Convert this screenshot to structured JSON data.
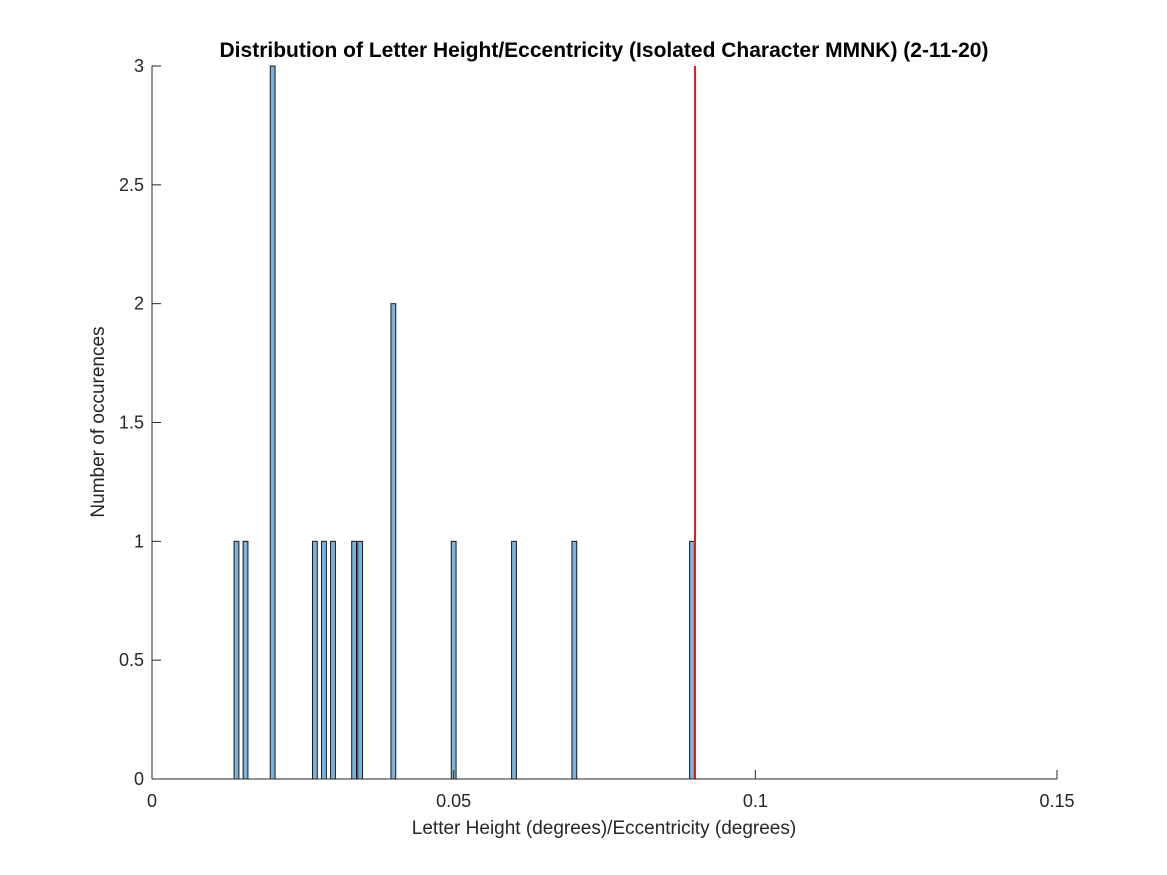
{
  "chart_data": {
    "type": "bar",
    "title": "Distribution of Letter Height/Eccentricity (Isolated Character MMNK) (2-11-20)",
    "xlabel": "Letter Height (degrees)/Eccentricity (degrees)",
    "ylabel": "Number of occurences",
    "xlim": [
      0,
      0.15
    ],
    "ylim": [
      0,
      3
    ],
    "xticks": [
      "0",
      "0.05",
      "0.1",
      "0.15"
    ],
    "yticks": [
      "0",
      "0.5",
      "1",
      "1.5",
      "2",
      "2.5",
      "3"
    ],
    "bin_width": 0.0008,
    "histogram_range": [
      0.0136,
      0.0896
    ],
    "bars": [
      {
        "x": 0.014,
        "count": 1
      },
      {
        "x": 0.0155,
        "count": 1
      },
      {
        "x": 0.02,
        "count": 3
      },
      {
        "x": 0.027,
        "count": 1
      },
      {
        "x": 0.0285,
        "count": 1
      },
      {
        "x": 0.03,
        "count": 1
      },
      {
        "x": 0.0335,
        "count": 1
      },
      {
        "x": 0.0345,
        "count": 1
      },
      {
        "x": 0.04,
        "count": 2
      },
      {
        "x": 0.05,
        "count": 1
      },
      {
        "x": 0.06,
        "count": 1
      },
      {
        "x": 0.07,
        "count": 1
      },
      {
        "x": 0.0895,
        "count": 1
      }
    ],
    "reference_line": {
      "x": 0.09,
      "color": "#e41a1c"
    },
    "bar_color": "#7ab3db",
    "bar_edge_color": "#1a1a1a",
    "grid": false,
    "legend": "none"
  }
}
